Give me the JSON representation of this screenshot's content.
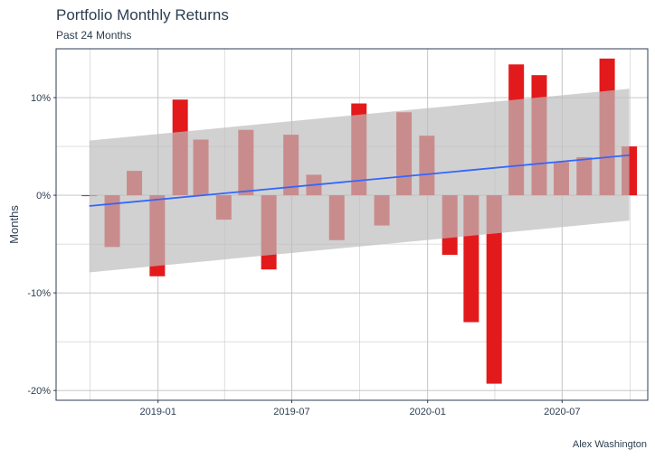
{
  "title": "Portfolio Monthly Returns",
  "subtitle": "Past 24 Months",
  "caption": "Alex Washington",
  "colors": {
    "bar": "#e31a1c",
    "trend": "#3366ff",
    "ribbon": "#bdbdbd",
    "grid": "#bfbfbf",
    "panel_border": "#2c3e50",
    "text": "#2c3e50"
  },
  "chart_data": {
    "type": "bar",
    "xlabel": "",
    "ylabel": "Months",
    "y_format": "percent",
    "ylim": [
      -0.21,
      0.15
    ],
    "xlim": [
      "2018-08-16",
      "2020-10-25"
    ],
    "y_ticks": [
      -0.2,
      -0.1,
      0,
      0.1
    ],
    "y_tick_labels": [
      "-20%",
      "-10%",
      "0%",
      "10%"
    ],
    "x_ticks": [
      "2019-01-01",
      "2019-07-01",
      "2020-01-01",
      "2020-07-01"
    ],
    "x_tick_labels": [
      "2019-01",
      "2019-07",
      "2020-01",
      "2020-07"
    ],
    "grid": true,
    "legend": "none",
    "series": [
      {
        "dates": [
          "2018-09-30",
          "2018-10-31",
          "2018-11-30",
          "2018-12-31",
          "2019-01-31",
          "2019-02-28",
          "2019-03-31",
          "2019-04-30",
          "2019-05-31",
          "2019-06-30",
          "2019-07-31",
          "2019-08-31",
          "2019-09-30",
          "2019-10-31",
          "2019-11-30",
          "2019-12-31",
          "2020-01-31",
          "2020-02-29",
          "2020-03-31",
          "2020-04-30",
          "2020-05-31",
          "2020-06-30",
          "2020-07-31",
          "2020-08-31",
          "2020-09-30"
        ],
        "values": [
          0.0,
          -0.053,
          0.025,
          -0.083,
          0.098,
          0.057,
          -0.025,
          0.067,
          -0.076,
          0.062,
          0.021,
          -0.046,
          0.094,
          -0.031,
          0.085,
          0.061,
          -0.061,
          -0.13,
          -0.193,
          0.134,
          0.123,
          0.034,
          0.039,
          0.14,
          0.05
        ]
      }
    ],
    "trend": {
      "method": "linear",
      "start": {
        "date": "2018-09-30",
        "value": -0.011
      },
      "end": {
        "date": "2020-09-30",
        "value": 0.041
      },
      "band_low_start": -0.079,
      "band_high_start": 0.056,
      "band_low_end": -0.026,
      "band_high_end": 0.109
    }
  }
}
